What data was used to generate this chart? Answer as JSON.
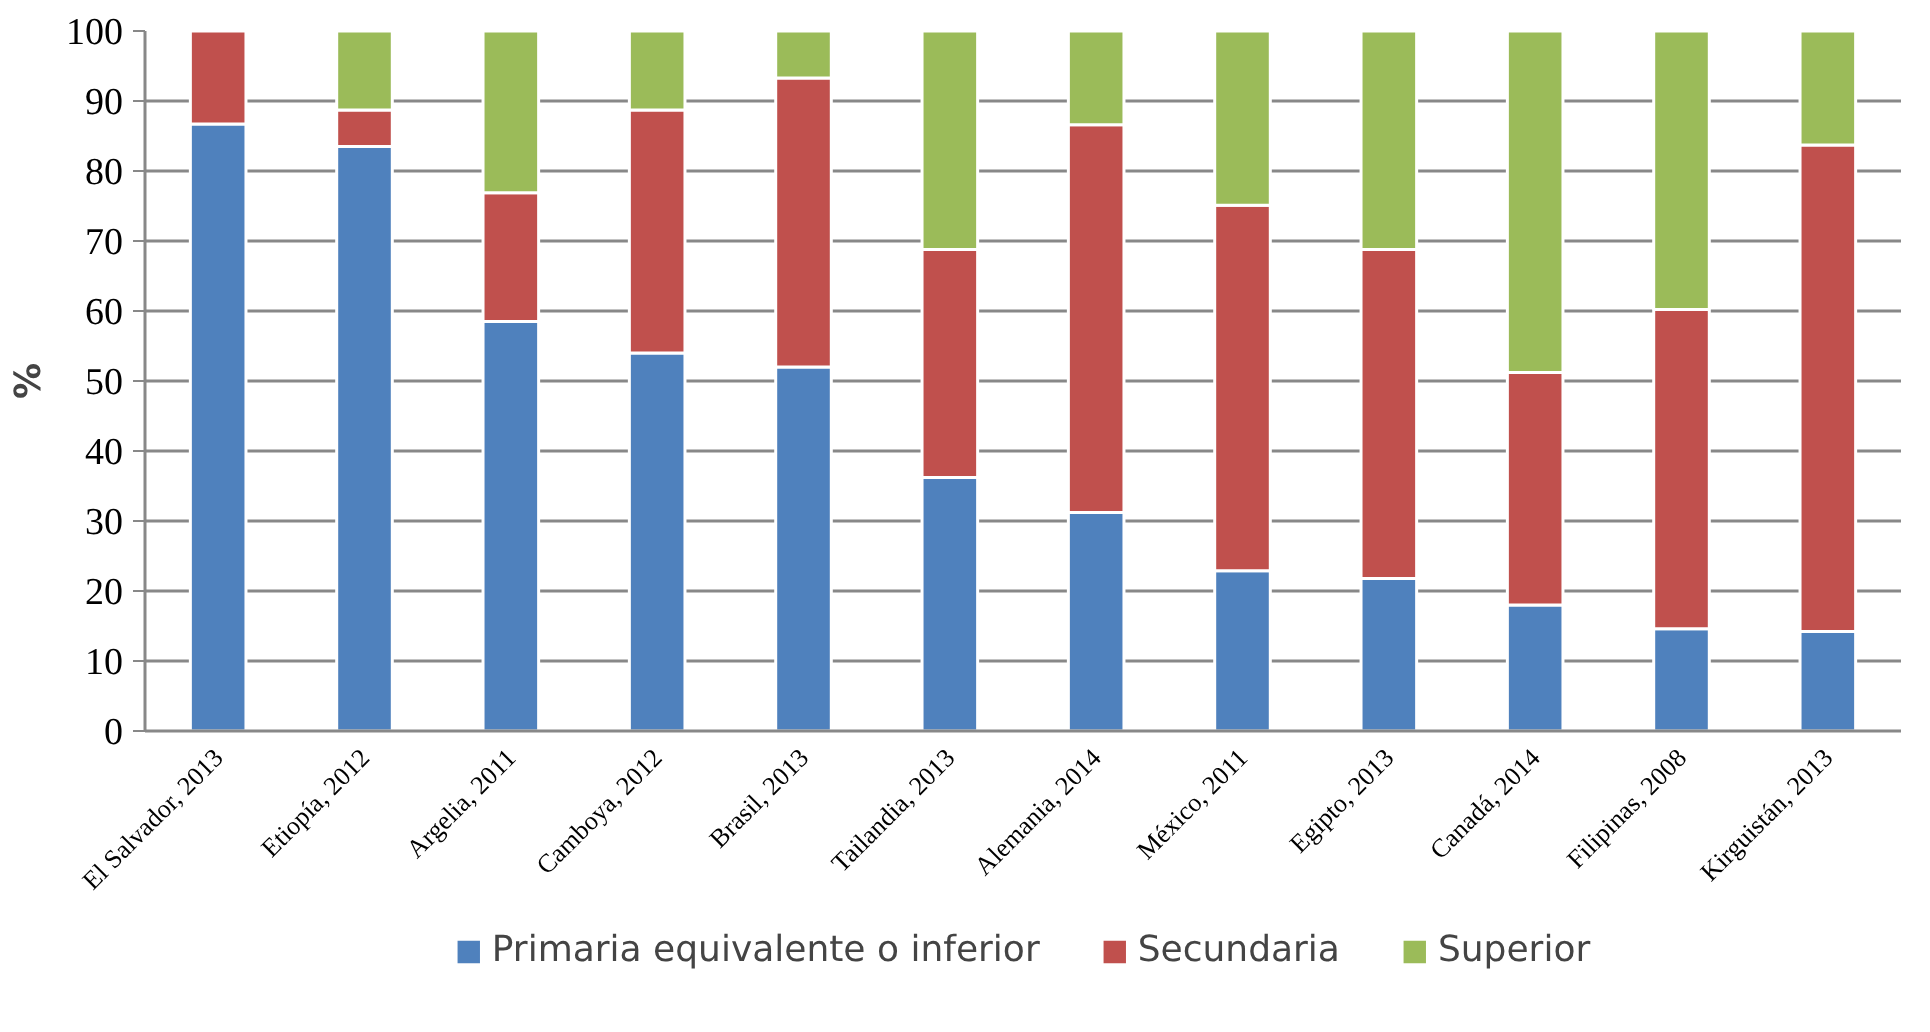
{
  "chart_data": {
    "type": "bar",
    "stacked": true,
    "ylabel": "%",
    "categories": [
      "El Salvador, 2013",
      "Etiopía, 2012",
      "Argelia, 2011",
      "Camboya, 2012",
      "Brasil, 2013",
      "Tailandia, 2013",
      "Alemania, 2014",
      "México, 2011",
      "Egipto, 2013",
      "Canadá, 2014",
      "Filipinas, 2008",
      "Kirguistán, 2013"
    ],
    "series": [
      {
        "name": "Primaria equivalente o inferior",
        "color": "#4f81bd",
        "values": [
          86.7,
          83.5,
          58.5,
          54.0,
          52.0,
          36.2,
          31.2,
          22.9,
          21.8,
          18.0,
          14.6,
          14.2
        ]
      },
      {
        "name": "Secundaria",
        "color": "#c0504d",
        "values": [
          13.3,
          5.2,
          18.4,
          34.7,
          41.3,
          32.6,
          55.4,
          52.2,
          47.0,
          33.2,
          45.6,
          69.5
        ]
      },
      {
        "name": "Superior",
        "color": "#9bbb59",
        "values": [
          0,
          11.3,
          23.1,
          11.3,
          6.7,
          31.2,
          13.4,
          24.9,
          31.2,
          48.8,
          39.8,
          16.3
        ]
      }
    ],
    "ylim": [
      0,
      100
    ],
    "yticks": [
      0,
      10,
      20,
      30,
      40,
      50,
      60,
      70,
      80,
      90,
      100
    ],
    "grid": "y",
    "legend": "bottom"
  }
}
